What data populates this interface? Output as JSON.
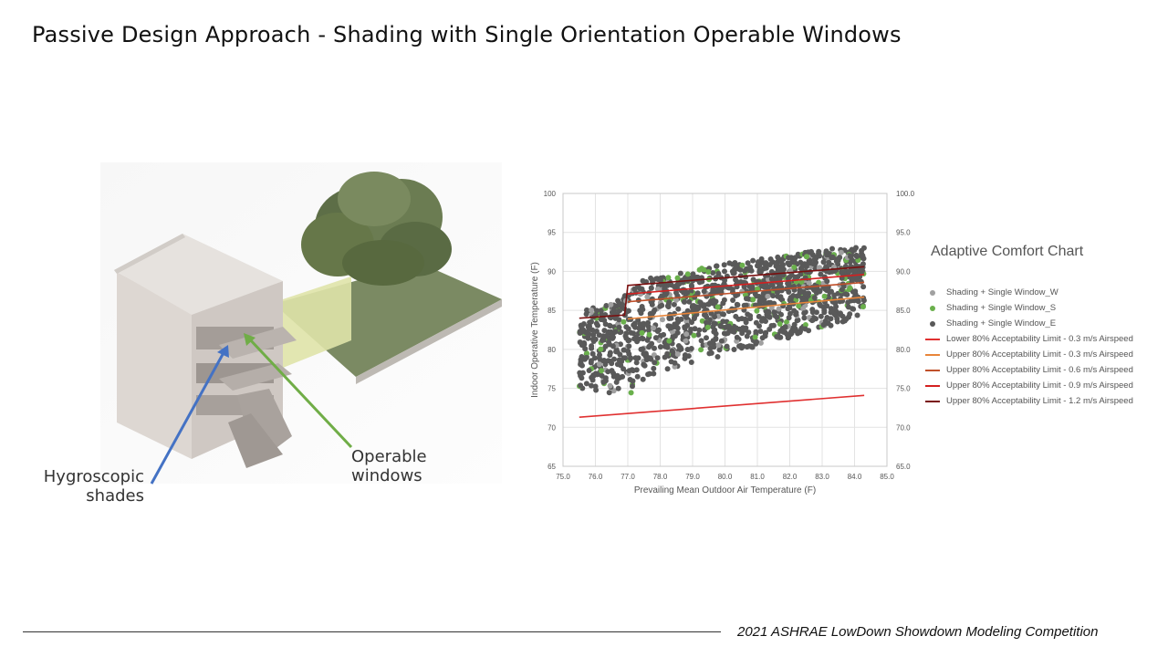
{
  "slide": {
    "title": "Passive Design Approach - Shading with Single Orientation Operable Windows",
    "footer": "2021 ASHRAE LowDown Showdown Modeling Competition"
  },
  "illustration": {
    "labels": {
      "shades_line1": "Hygroscopic",
      "shades_line2": "shades",
      "windows_line1": "Operable",
      "windows_line2": "windows"
    },
    "arrow_colors": {
      "shades": "#4472c4",
      "windows": "#70ad47"
    }
  },
  "chart_data": {
    "type": "scatter",
    "title": "Adaptive Comfort Chart",
    "xlabel": "Prevailing Mean Outdoor Air Temperature (F)",
    "ylabel": "Indoor Operative Temperature (F)",
    "xlim": [
      75.0,
      85.0
    ],
    "ylim": [
      65,
      100
    ],
    "x_ticks": [
      "75.0",
      "76.0",
      "77.0",
      "78.0",
      "79.0",
      "80.0",
      "81.0",
      "82.0",
      "83.0",
      "84.0",
      "85.0"
    ],
    "y_ticks_left": [
      "65",
      "70",
      "75",
      "80",
      "85",
      "90",
      "95",
      "100"
    ],
    "y_ticks_right": [
      "65.0",
      "70.0",
      "75.0",
      "80.0",
      "85.0",
      "90.0",
      "95.0",
      "100.0"
    ],
    "grid": true,
    "legend_position": "right",
    "scatter_series": [
      {
        "name": "Shading + Single Window_W",
        "color": "#a0a0a0"
      },
      {
        "name": "Shading + Single Window_S",
        "color": "#6ab04c"
      },
      {
        "name": "Shading + Single Window_E",
        "color": "#595959"
      }
    ],
    "point_cloud": {
      "x_range": [
        75.5,
        84.3
      ],
      "band_lower": [
        [
          75.5,
          75
        ],
        [
          77.0,
          74
        ],
        [
          78.0,
          77
        ],
        [
          84.3,
          84
        ]
      ],
      "band_upper": [
        [
          75.5,
          85
        ],
        [
          76.5,
          86
        ],
        [
          77.5,
          89
        ],
        [
          80.0,
          91
        ],
        [
          84.3,
          93.5
        ]
      ]
    },
    "limit_series": [
      {
        "name": "Lower 80% Acceptability Limit - 0.3 m/s Airspeed",
        "color": "#e03030",
        "points": [
          [
            75.5,
            71.3
          ],
          [
            84.3,
            74.1
          ]
        ]
      },
      {
        "name": "Upper 80% Acceptability Limit - 0.3 m/s Airspeed",
        "color": "#e8853a",
        "points": [
          [
            77.0,
            83.9
          ],
          [
            84.3,
            86.7
          ]
        ]
      },
      {
        "name": "Upper 80% Acceptability Limit - 0.6 m/s Airspeed",
        "color": "#c0502a",
        "points": [
          [
            77.0,
            86.1
          ],
          [
            84.3,
            88.6
          ]
        ]
      },
      {
        "name": "Upper 80% Acceptability Limit - 0.9 m/s Airspeed",
        "color": "#d42020",
        "points": [
          [
            77.0,
            87.1
          ],
          [
            84.3,
            89.6
          ]
        ]
      },
      {
        "name": "Upper 80% Acceptability Limit - 1.2 m/s Airspeed",
        "color": "#7a1010",
        "points": [
          [
            75.5,
            84.0
          ],
          [
            76.9,
            84.4
          ],
          [
            77.0,
            88.2
          ],
          [
            84.3,
            90.6
          ]
        ]
      }
    ]
  }
}
